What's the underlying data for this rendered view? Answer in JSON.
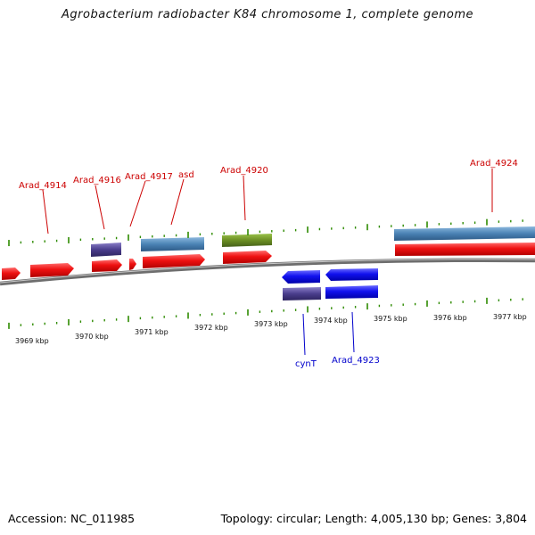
{
  "title": "Agrobacterium radiobacter K84 chromosome 1, complete genome",
  "footer": {
    "accession": "Accession: NC_011985",
    "summary": "Topology: circular; Length: 4,005,130 bp; Genes: 3,804"
  },
  "colors": {
    "forward_label": "#cc0000",
    "reverse_label": "#0000cc",
    "tick_green": "#2e8b00",
    "backbone": "#8a8a8a",
    "cds_red": "#ee1111",
    "cds_blue": "#1111ee",
    "rna_purple": "#4a3d8c",
    "gene_steelblue": "#4a82b4",
    "gene_olive": "#6b8e23"
  },
  "kbp_labels": [
    "3969 kbp",
    "3970 kbp",
    "3971 kbp",
    "3972 kbp",
    "3973 kbp",
    "3974 kbp",
    "3975 kbp",
    "3976 kbp",
    "3977 kbp"
  ],
  "forward_gene_labels": [
    "Arad_4914",
    "Arad_4916",
    "Arad_4917",
    "asd",
    "Arad_4920",
    "Arad_4924"
  ],
  "reverse_gene_labels": [
    "cynT",
    "Arad_4923"
  ]
}
